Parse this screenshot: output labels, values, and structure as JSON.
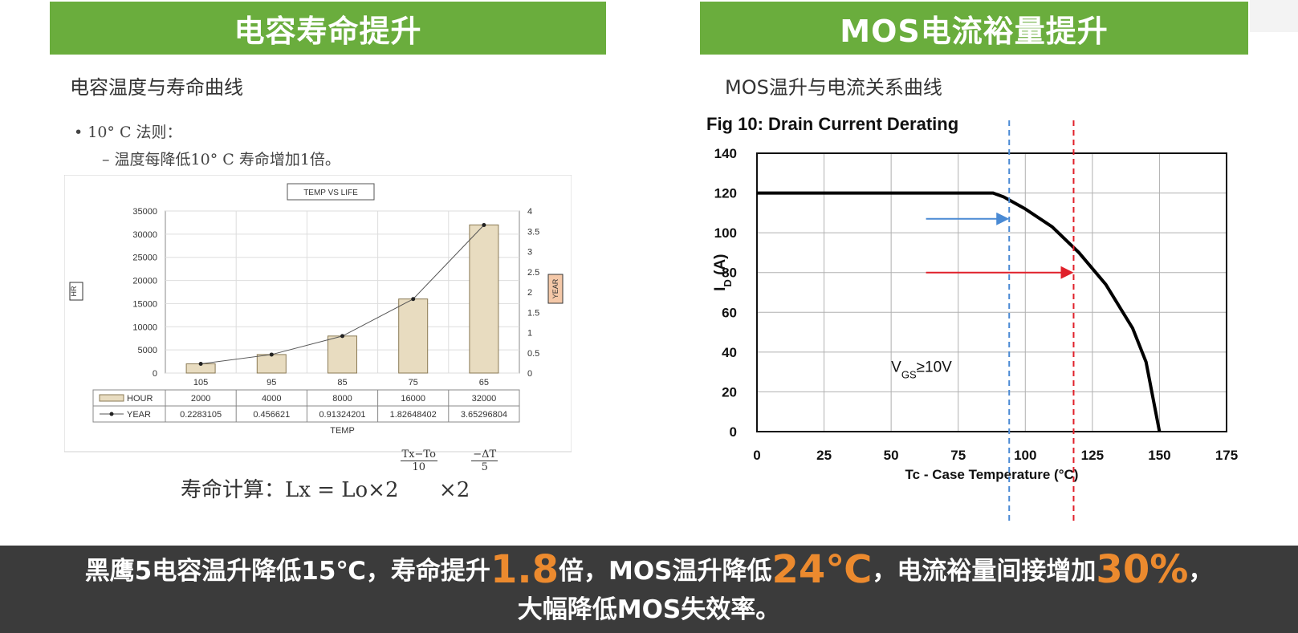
{
  "left_panel": {
    "title": "电容寿命提升",
    "subtitle": "电容温度与寿命曲线",
    "rule_line1": "•  10° C 法则：",
    "rule_line2": "– 温度每降低10° C 寿命增加1倍。",
    "formula": {
      "prefix": "寿命计算：",
      "expr1": "Lx = Lo×2",
      "frac1_num": "Tx−To",
      "frac1_den": "10",
      "expr2": "×2",
      "frac2_num": "−ΔT",
      "frac2_den": "5"
    }
  },
  "right_panel": {
    "title": "MOS电流裕量提升",
    "subtitle": "MOS温升与电流关系曲线"
  },
  "bottom": {
    "t1": "黑鹰5电容温升降低15℃，寿命提升",
    "h1": "1.8",
    "t2": "倍，MOS温升降低",
    "h2": "24℃",
    "t3": "，电流裕量间接增加",
    "h3": "30%",
    "t4": "，",
    "line2": "大幅降低MOS失效率。"
  },
  "colors": {
    "header_green": "#6aad3d",
    "highlight_orange": "#ec8a2e",
    "bar_fill": "#e8dcc0",
    "blue_marker": "#4a8ad4",
    "red_marker": "#e0202a"
  },
  "chart_data": [
    {
      "type": "bar",
      "title": "TEMP VS LIFE",
      "xlabel": "TEMP",
      "ylabel": "HR",
      "y2label": "YEAR",
      "categories": [
        "105",
        "95",
        "85",
        "75",
        "65"
      ],
      "ylim": [
        0,
        35000
      ],
      "yticks": [
        0,
        5000,
        10000,
        15000,
        20000,
        25000,
        30000,
        35000
      ],
      "y2lim": [
        0,
        4
      ],
      "y2ticks": [
        "0",
        "0.5",
        "1",
        "1.5",
        "2",
        "2.5",
        "3",
        "3.5",
        "4"
      ],
      "series": [
        {
          "name": "HOUR",
          "type": "bar",
          "values": [
            2000,
            4000,
            8000,
            16000,
            32000
          ],
          "labels": [
            "2000",
            "4000",
            "8000",
            "16000",
            "32000"
          ]
        },
        {
          "name": "YEAR",
          "type": "line",
          "axis": "right",
          "values": [
            0.2283105,
            0.456621,
            0.91324201,
            1.82648402,
            3.65296804
          ],
          "labels": [
            "0.2283105",
            "0.456621",
            "0.91324201",
            "1.82648402",
            "3.65296804"
          ]
        }
      ],
      "grid": true
    },
    {
      "type": "line",
      "title": "Fig 10: Drain Current Derating",
      "xlabel": "Tc - Case Temperature (°C)",
      "ylabel_main": "I",
      "ylabel_sub": "D",
      "ylabel_unit": " (A)",
      "xlim": [
        0,
        175
      ],
      "ylim": [
        0,
        140
      ],
      "xticks": [
        0,
        25,
        50,
        75,
        100,
        125,
        150,
        175
      ],
      "yticks": [
        0,
        20,
        40,
        60,
        80,
        100,
        120,
        140
      ],
      "series": [
        {
          "x": [
            0,
            88,
            92,
            100,
            110,
            120,
            130,
            140,
            145,
            150
          ],
          "y": [
            120,
            120,
            118,
            112,
            103,
            90,
            74,
            52,
            35,
            0
          ]
        }
      ],
      "annotation_main": "V",
      "annotation_sub": "GS",
      "annotation_rest": "≥10V",
      "markers": [
        {
          "color": "blue",
          "x": 94,
          "arrow_y": 107,
          "arrow_from_x": 63
        },
        {
          "color": "red",
          "x": 118,
          "arrow_y": 80,
          "arrow_from_x": 63
        }
      ],
      "grid": true
    }
  ]
}
